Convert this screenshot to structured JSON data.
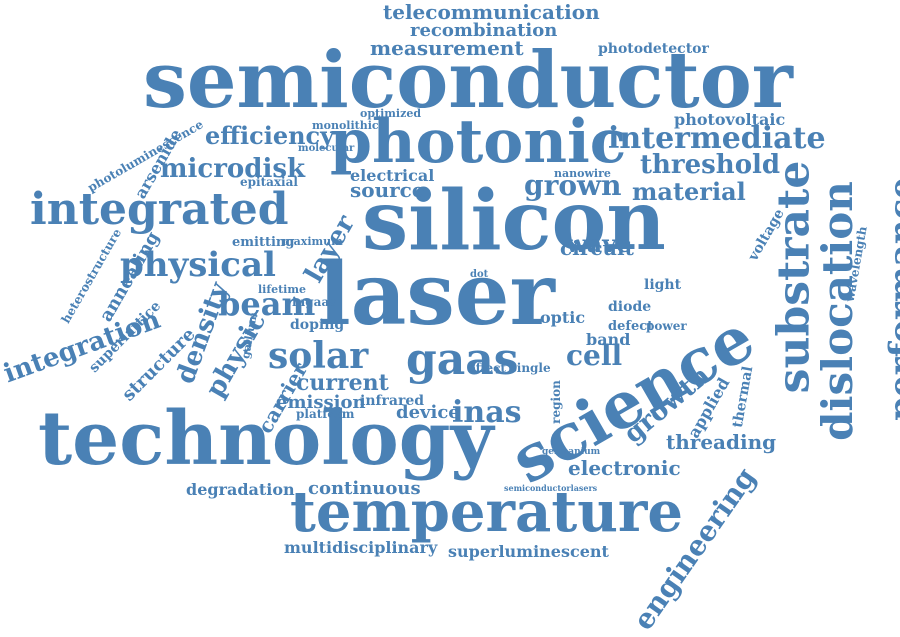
{
  "cloud": {
    "color": "#4a81b5",
    "words": [
      "telecommunication",
      "recombination",
      "measurement",
      "photodetector",
      "semiconductor",
      "photoluminescence",
      "arsenide",
      "efficiency",
      "integrated",
      "optimized",
      "microdisk",
      "photonic",
      "intermediate",
      "photovoltaic",
      "monolithic",
      "threshold",
      "molecular",
      "epitaxial",
      "electrical",
      "grown",
      "material",
      "source",
      "silicon",
      "substrate",
      "performance",
      "dislocation",
      "physical",
      "wavelength",
      "layer",
      "annealing",
      "heterostructure",
      "integration",
      "beam",
      "density",
      "laser",
      "dot",
      "circuit",
      "wave",
      "emitting",
      "maximum",
      "voltage",
      "nanowire",
      "ingaas",
      "lifetime",
      "superlattice",
      "structure",
      "physic",
      "doping",
      "solar",
      "gaas",
      "cell",
      "band",
      "light",
      "diode",
      "optic",
      "science",
      "defect",
      "power",
      "gallium",
      "carrier",
      "current",
      "emission",
      "infrared",
      "device",
      "inas",
      "platform",
      "growth",
      "applied",
      "thermal",
      "technology",
      "threading",
      "electronic",
      "engineering",
      "effect",
      "single",
      "region",
      "degradation",
      "continuous",
      "temperature",
      "multidisciplinary",
      "superluminescent",
      "germanium",
      "semiconductorlasers"
    ]
  }
}
